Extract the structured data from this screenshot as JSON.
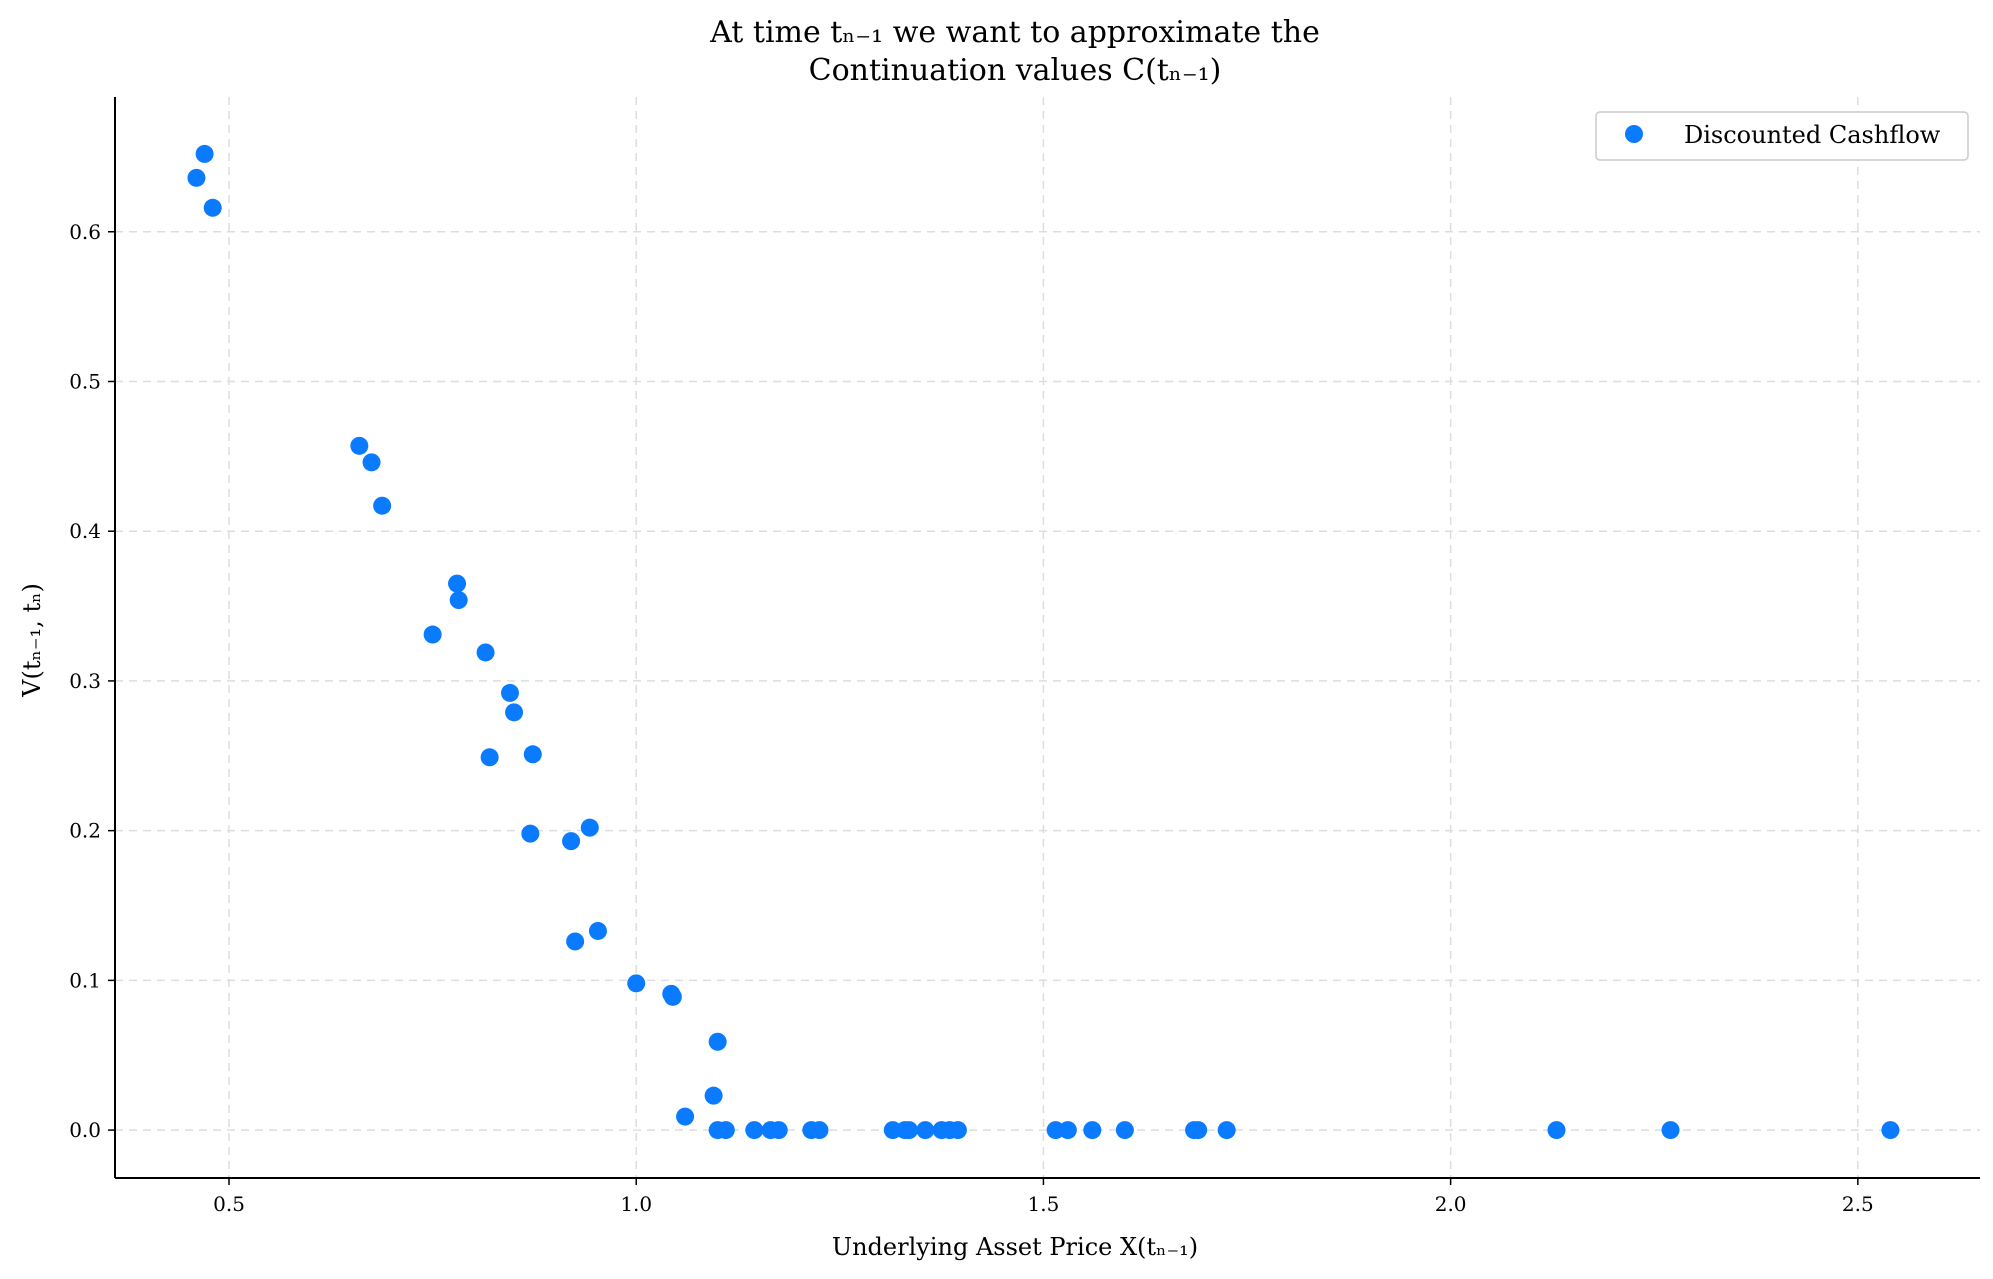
{
  "chart_data": {
    "type": "scatter",
    "title_line1": "At time tₙ₋₁ we want to approximate the",
    "title_line2": "Continuation values C(tₙ₋₁)",
    "xlabel": "Underlying Asset Price X(tₙ₋₁)",
    "ylabel": "V(tₙ₋₁, tₙ)",
    "xlim": [
      0.36,
      2.65
    ],
    "ylim": [
      -0.032,
      0.69
    ],
    "xticks": [
      0.5,
      1.0,
      1.5,
      2.0,
      2.5
    ],
    "xtick_labels": [
      "0.5",
      "1.0",
      "1.5",
      "2.0",
      "2.5"
    ],
    "yticks": [
      0.0,
      0.1,
      0.2,
      0.3,
      0.4,
      0.5,
      0.6
    ],
    "ytick_labels": [
      "0.0",
      "0.1",
      "0.2",
      "0.3",
      "0.4",
      "0.5",
      "0.6"
    ],
    "grid": true,
    "legend_position": "top-right",
    "marker_color": "#0a7bff",
    "series": [
      {
        "name": "Discounted Cashflow",
        "points": [
          [
            0.46,
            0.636
          ],
          [
            0.47,
            0.652
          ],
          [
            0.48,
            0.616
          ],
          [
            0.66,
            0.457
          ],
          [
            0.675,
            0.446
          ],
          [
            0.688,
            0.417
          ],
          [
            0.75,
            0.331
          ],
          [
            0.78,
            0.365
          ],
          [
            0.782,
            0.354
          ],
          [
            0.815,
            0.319
          ],
          [
            0.82,
            0.249
          ],
          [
            0.845,
            0.292
          ],
          [
            0.85,
            0.279
          ],
          [
            0.87,
            0.198
          ],
          [
            0.873,
            0.251
          ],
          [
            0.92,
            0.193
          ],
          [
            0.925,
            0.126
          ],
          [
            0.943,
            0.202
          ],
          [
            0.953,
            0.133
          ],
          [
            1.0,
            0.098
          ],
          [
            1.043,
            0.091
          ],
          [
            1.045,
            0.089
          ],
          [
            1.06,
            0.009
          ],
          [
            1.095,
            0.023
          ],
          [
            1.1,
            0.059
          ],
          [
            1.1,
            0.0
          ],
          [
            1.11,
            0.0
          ],
          [
            1.145,
            0.0
          ],
          [
            1.165,
            0.0
          ],
          [
            1.175,
            0.0
          ],
          [
            1.215,
            0.0
          ],
          [
            1.225,
            0.0
          ],
          [
            1.315,
            0.0
          ],
          [
            1.33,
            0.0
          ],
          [
            1.335,
            0.0
          ],
          [
            1.355,
            0.0
          ],
          [
            1.375,
            0.0
          ],
          [
            1.385,
            0.0
          ],
          [
            1.395,
            0.0
          ],
          [
            1.515,
            0.0
          ],
          [
            1.53,
            0.0
          ],
          [
            1.56,
            0.0
          ],
          [
            1.6,
            0.0
          ],
          [
            1.685,
            0.0
          ],
          [
            1.69,
            0.0
          ],
          [
            1.725,
            0.0
          ],
          [
            2.13,
            0.0
          ],
          [
            2.27,
            0.0
          ],
          [
            2.54,
            0.0
          ]
        ]
      }
    ]
  }
}
